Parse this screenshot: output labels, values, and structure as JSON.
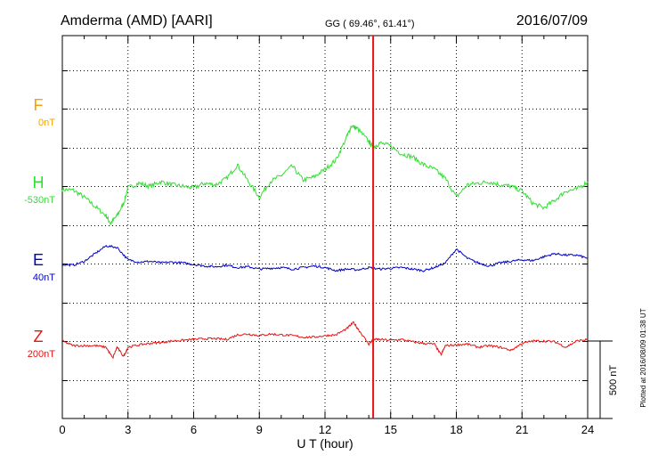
{
  "header": {
    "station": "Amderma (AMD)  [AARI]",
    "coords": "GG ( 69.46°,  61.41°)",
    "date": "2016/07/09"
  },
  "footer": {
    "plotted": "Plotted at 2016/08/09 01:38 UT"
  },
  "colors": {
    "F": "#f5a200",
    "H": "#33dd33",
    "E": "#0000cc",
    "Z": "#ee1111",
    "marker": "#ee1111"
  },
  "chart_data": {
    "type": "line",
    "xlabel": "U T (hour)",
    "xlim": [
      0,
      24
    ],
    "xticks": [
      "0",
      "3",
      "6",
      "9",
      "12",
      "15",
      "18",
      "21",
      "24"
    ],
    "scale_bar_label": "500 nT",
    "marker_x": 14.2,
    "series": [
      {
        "name": "F",
        "baseline_label": "0nT",
        "data": []
      },
      {
        "name": "H",
        "baseline_label": "-530nT",
        "data": [
          [
            0,
            -10
          ],
          [
            0.5,
            -15
          ],
          [
            1,
            -60
          ],
          [
            1.5,
            -120
          ],
          [
            2,
            -180
          ],
          [
            2.2,
            -230
          ],
          [
            2.5,
            -180
          ],
          [
            2.8,
            -100
          ],
          [
            3,
            0
          ],
          [
            3.5,
            30
          ],
          [
            4,
            10
          ],
          [
            4.5,
            40
          ],
          [
            5,
            20
          ],
          [
            5.5,
            10
          ],
          [
            6,
            0
          ],
          [
            6.5,
            30
          ],
          [
            7,
            20
          ],
          [
            7.5,
            60
          ],
          [
            8,
            150
          ],
          [
            8.5,
            40
          ],
          [
            9,
            -60
          ],
          [
            9.5,
            40
          ],
          [
            10,
            80
          ],
          [
            10.5,
            140
          ],
          [
            11,
            50
          ],
          [
            11.5,
            70
          ],
          [
            12,
            120
          ],
          [
            12.5,
            180
          ],
          [
            13,
            330
          ],
          [
            13.2,
            400
          ],
          [
            13.5,
            380
          ],
          [
            14,
            300
          ],
          [
            14.2,
            260
          ],
          [
            14.5,
            290
          ],
          [
            15,
            270
          ],
          [
            15.5,
            220
          ],
          [
            16,
            200
          ],
          [
            16.5,
            150
          ],
          [
            17,
            120
          ],
          [
            17.5,
            60
          ],
          [
            18,
            -60
          ],
          [
            18.5,
            20
          ],
          [
            19,
            30
          ],
          [
            19.5,
            40
          ],
          [
            20,
            20
          ],
          [
            20.5,
            10
          ],
          [
            21,
            -20
          ],
          [
            21.5,
            -100
          ],
          [
            22,
            -130
          ],
          [
            22.5,
            -80
          ],
          [
            23,
            -20
          ],
          [
            23.5,
            -10
          ],
          [
            24,
            40
          ]
        ]
      },
      {
        "name": "E",
        "baseline_label": "40nT",
        "data": [
          [
            0,
            0
          ],
          [
            0.5,
            -5
          ],
          [
            1,
            20
          ],
          [
            1.5,
            70
          ],
          [
            2,
            120
          ],
          [
            2.5,
            110
          ],
          [
            3,
            30
          ],
          [
            3.5,
            15
          ],
          [
            4,
            20
          ],
          [
            4.5,
            10
          ],
          [
            5,
            15
          ],
          [
            5.5,
            10
          ],
          [
            6,
            0
          ],
          [
            6.5,
            -10
          ],
          [
            7,
            -15
          ],
          [
            7.5,
            -5
          ],
          [
            8,
            -20
          ],
          [
            8.5,
            -15
          ],
          [
            9,
            -30
          ],
          [
            9.5,
            -25
          ],
          [
            10,
            -20
          ],
          [
            10.5,
            -30
          ],
          [
            11,
            -20
          ],
          [
            11.5,
            -10
          ],
          [
            12,
            -20
          ],
          [
            12.5,
            -40
          ],
          [
            13,
            -30
          ],
          [
            13.5,
            -35
          ],
          [
            14,
            -20
          ],
          [
            14.5,
            -30
          ],
          [
            15,
            -25
          ],
          [
            15.5,
            -20
          ],
          [
            16,
            -30
          ],
          [
            16.5,
            -40
          ],
          [
            17,
            -20
          ],
          [
            17.5,
            10
          ],
          [
            18,
            100
          ],
          [
            18.5,
            40
          ],
          [
            19,
            10
          ],
          [
            19.5,
            -10
          ],
          [
            20,
            10
          ],
          [
            20.5,
            20
          ],
          [
            21,
            30
          ],
          [
            21.5,
            25
          ],
          [
            22,
            50
          ],
          [
            22.5,
            70
          ],
          [
            23,
            60
          ],
          [
            23.5,
            60
          ],
          [
            24,
            40
          ]
        ]
      },
      {
        "name": "Z",
        "baseline_label": "200nT",
        "data": [
          [
            0,
            0
          ],
          [
            0.5,
            -30
          ],
          [
            1,
            -30
          ],
          [
            1.5,
            -30
          ],
          [
            2,
            -40
          ],
          [
            2.3,
            -110
          ],
          [
            2.5,
            -40
          ],
          [
            2.8,
            -100
          ],
          [
            3,
            -40
          ],
          [
            3.5,
            -25
          ],
          [
            4,
            -15
          ],
          [
            4.5,
            -10
          ],
          [
            5,
            0
          ],
          [
            5.5,
            5
          ],
          [
            6,
            10
          ],
          [
            6.5,
            15
          ],
          [
            7,
            15
          ],
          [
            7.5,
            10
          ],
          [
            8,
            40
          ],
          [
            8.5,
            45
          ],
          [
            9,
            35
          ],
          [
            9.5,
            45
          ],
          [
            10,
            40
          ],
          [
            10.5,
            35
          ],
          [
            11,
            25
          ],
          [
            11.5,
            25
          ],
          [
            12,
            35
          ],
          [
            12.5,
            40
          ],
          [
            13,
            80
          ],
          [
            13.3,
            120
          ],
          [
            13.6,
            60
          ],
          [
            14,
            -20
          ],
          [
            14.2,
            10
          ],
          [
            14.5,
            10
          ],
          [
            15,
            5
          ],
          [
            15.5,
            10
          ],
          [
            16,
            -5
          ],
          [
            16.5,
            -15
          ],
          [
            17,
            -20
          ],
          [
            17.3,
            -90
          ],
          [
            17.5,
            -30
          ],
          [
            18,
            -25
          ],
          [
            18.5,
            -20
          ],
          [
            19,
            -40
          ],
          [
            19.5,
            -30
          ],
          [
            20,
            -40
          ],
          [
            20.5,
            -60
          ],
          [
            21,
            -15
          ],
          [
            21.5,
            0
          ],
          [
            22,
            0
          ],
          [
            22.5,
            -5
          ],
          [
            23,
            -40
          ],
          [
            23.5,
            0
          ],
          [
            24,
            10
          ]
        ]
      }
    ]
  }
}
